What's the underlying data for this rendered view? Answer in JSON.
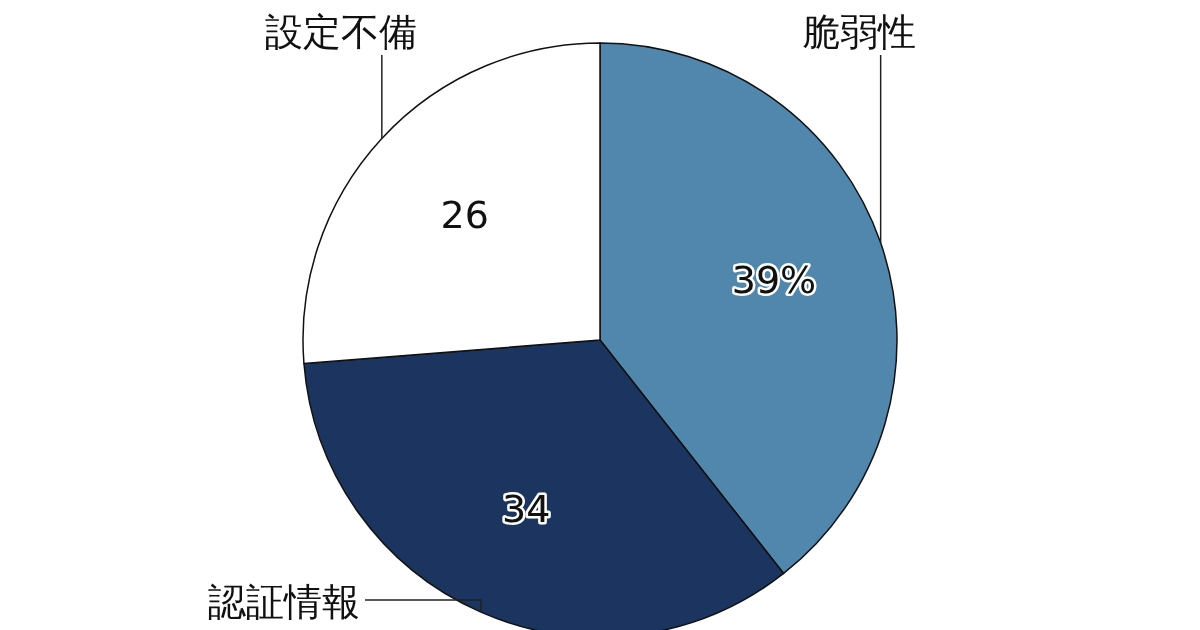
{
  "chart_data": {
    "type": "pie",
    "categories": [
      "脆弱性",
      "認証情報",
      "設定不備"
    ],
    "values": [
      39,
      34,
      26
    ],
    "value_labels": [
      "39%",
      "34",
      "26"
    ],
    "colors": [
      "#5287ad",
      "#1b3560",
      "#ffffff"
    ]
  }
}
